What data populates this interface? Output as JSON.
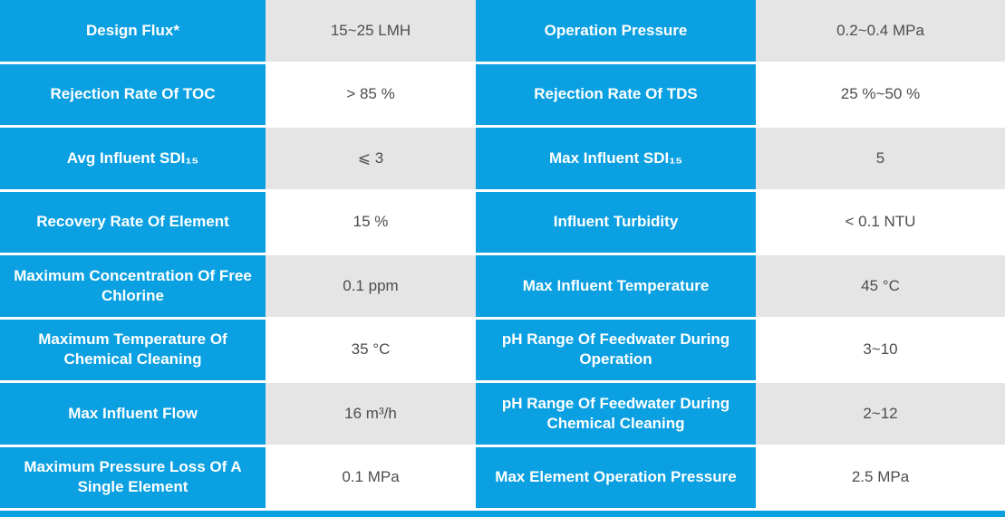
{
  "colors": {
    "header_blue": "#0aa0e1",
    "value_row_gray": "#e5e5e5",
    "value_row_white": "#ffffff",
    "label_text": "#ffffff",
    "value_text": "#4d4d4d"
  },
  "table": {
    "rows": [
      {
        "left_label": "Design Flux*",
        "left_value": "15~25 LMH",
        "right_label": "Operation Pressure",
        "right_value": "0.2~0.4 MPa"
      },
      {
        "left_label": "Rejection Rate Of TOC",
        "left_value": "> 85 %",
        "right_label": "Rejection Rate Of TDS",
        "right_value": "25 %~50 %"
      },
      {
        "left_label": "Avg Influent SDI₁₅",
        "left_value": "⩽ 3",
        "right_label": "Max Influent SDI₁₅",
        "right_value": "5"
      },
      {
        "left_label": "Recovery Rate Of Element",
        "left_value": "15 %",
        "right_label": "Influent Turbidity",
        "right_value": "< 0.1 NTU"
      },
      {
        "left_label": "Maximum Concentration Of Free Chlorine",
        "left_value": "0.1 ppm",
        "right_label": "Max Influent Temperature",
        "right_value": "45 °C"
      },
      {
        "left_label": "Maximum Temperature Of Chemical Cleaning",
        "left_value": "35 °C",
        "right_label": "pH Range Of Feedwater During Operation",
        "right_value": "3~10"
      },
      {
        "left_label": "Max Influent Flow",
        "left_value": "16 m³/h",
        "right_label": "pH Range Of Feedwater During Chemical Cleaning",
        "right_value": "2~12"
      },
      {
        "left_label": "Maximum Pressure Loss Of A Single Element",
        "left_value": "0.1 MPa",
        "right_label": "Max Element Operation Pressure",
        "right_value": "2.5 MPa"
      }
    ]
  }
}
